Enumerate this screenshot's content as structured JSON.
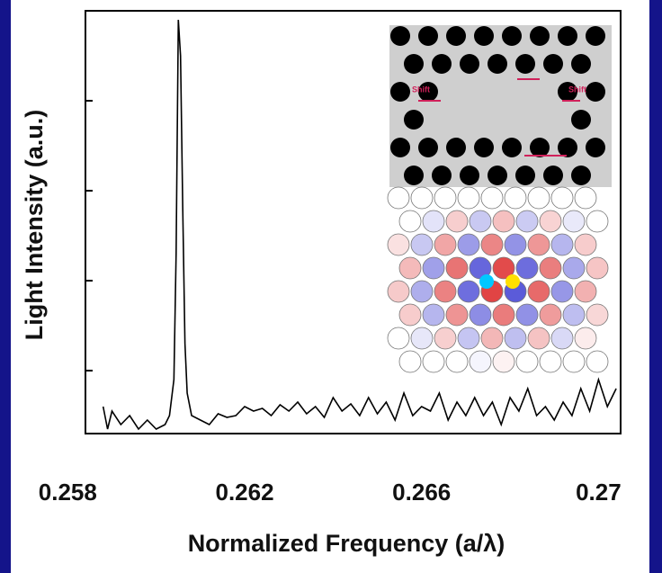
{
  "chart_data": {
    "type": "line",
    "xlabel": "Normalized Frequency (a/λ)",
    "ylabel": "Light Intensity (a.u.)",
    "inset_labels": [
      "Shift",
      "Shift"
    ],
    "x": [
      0.2588,
      0.2589,
      0.259,
      0.2592,
      0.2594,
      0.2596,
      0.2598,
      0.26,
      0.2602,
      0.2603,
      0.2604,
      0.26045,
      0.2605,
      0.26055,
      0.2606,
      0.26065,
      0.2607,
      0.2608,
      0.261,
      0.2612,
      0.2614,
      0.2616,
      0.2618,
      0.262,
      0.2622,
      0.2624,
      0.2626,
      0.2628,
      0.263,
      0.2632,
      0.2634,
      0.2636,
      0.2638,
      0.264,
      0.2642,
      0.2644,
      0.2646,
      0.2648,
      0.265,
      0.2652,
      0.2654,
      0.2656,
      0.2658,
      0.266,
      0.2662,
      0.2664,
      0.2666,
      0.2668,
      0.267,
      0.2672,
      0.2674,
      0.2676,
      0.2678,
      0.268,
      0.2682,
      0.2684,
      0.2686,
      0.2688,
      0.269,
      0.2692,
      0.2694,
      0.2696,
      0.2698,
      0.27,
      0.2702,
      0.2704
    ],
    "series": [
      {
        "color": "#000000",
        "values": [
          0.3,
          0.05,
          0.25,
          0.1,
          0.2,
          0.05,
          0.15,
          0.05,
          0.1,
          0.2,
          0.6,
          2.0,
          4.6,
          4.2,
          2.5,
          1.0,
          0.45,
          0.2,
          0.15,
          0.1,
          0.22,
          0.18,
          0.2,
          0.3,
          0.25,
          0.28,
          0.2,
          0.32,
          0.25,
          0.35,
          0.22,
          0.3,
          0.18,
          0.4,
          0.25,
          0.33,
          0.2,
          0.4,
          0.22,
          0.35,
          0.15,
          0.45,
          0.2,
          0.3,
          0.25,
          0.45,
          0.15,
          0.35,
          0.2,
          0.4,
          0.2,
          0.35,
          0.1,
          0.4,
          0.25,
          0.5,
          0.2,
          0.3,
          0.15,
          0.35,
          0.2,
          0.5,
          0.25,
          0.6,
          0.3,
          0.5
        ]
      }
    ],
    "xlim": [
      0.2584,
      0.2705
    ],
    "xticks": [
      0.258,
      0.262,
      0.266,
      0.27
    ],
    "ylim": [
      0,
      4.7
    ],
    "yticks": [
      0.7,
      1.7,
      2.7,
      3.7
    ]
  }
}
